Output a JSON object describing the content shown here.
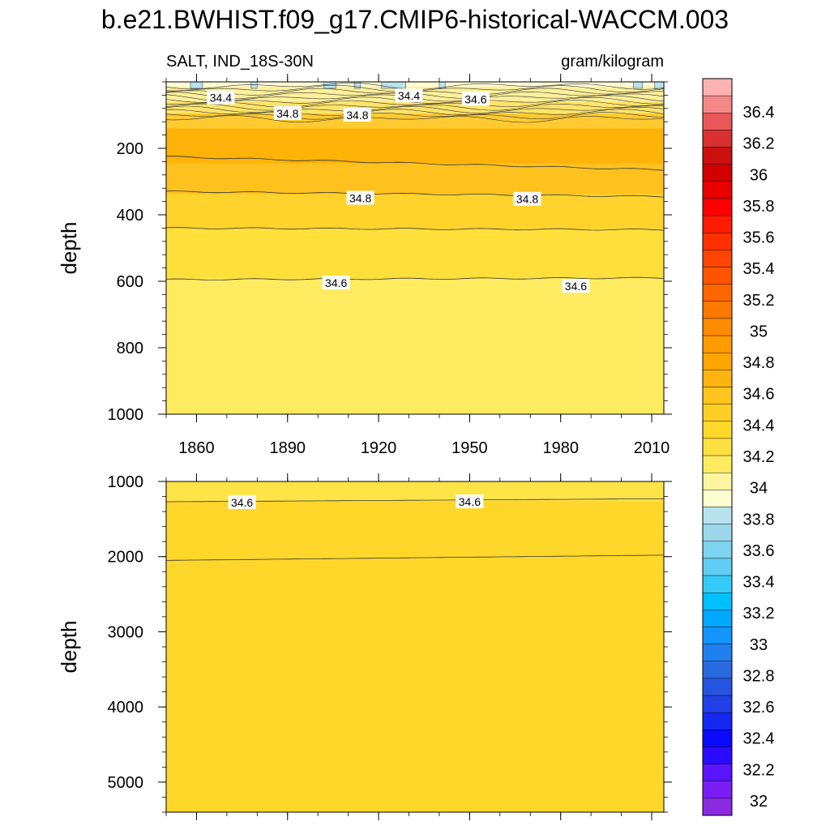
{
  "title": "b.e21.BWHIST.f09_g17.CMIP6-historical-WACCM.003",
  "colorbar": {
    "labels": [
      "32",
      "32.2",
      "32.4",
      "32.6",
      "32.8",
      "33",
      "33.2",
      "33.4",
      "33.6",
      "33.8",
      "34",
      "34.2",
      "34.4",
      "34.6",
      "34.8",
      "35",
      "35.2",
      "35.4",
      "35.6",
      "35.8",
      "36",
      "36.2",
      "36.4"
    ],
    "colors": [
      "#8a2be2",
      "#7a1ef5",
      "#5a14ff",
      "#2b0bff",
      "#0a0aff",
      "#1428f0",
      "#2040e8",
      "#2555e0",
      "#2a6ae0",
      "#2080f0",
      "#1494ff",
      "#00a8ff",
      "#00c0ff",
      "#35caf7",
      "#60cdf5",
      "#7ed3f0",
      "#9cd7ec",
      "#b8e2ee",
      "#fffed0",
      "#fff5a0",
      "#ffeb60",
      "#ffe040",
      "#ffd82a",
      "#ffcf25",
      "#ffc41e",
      "#ffb40f",
      "#ffa500",
      "#ff9a00",
      "#ff8c00",
      "#ff7800",
      "#ff6600",
      "#ff5500",
      "#ff4400",
      "#ff3000",
      "#ff1a00",
      "#ff0000",
      "#e80000",
      "#d20000",
      "#cc1010",
      "#d83030",
      "#e85858",
      "#f48888",
      "#ffb2b2"
    ]
  },
  "chart_data": [
    {
      "type": "contour",
      "subtitle_left": "SALT, IND_18S-30N",
      "subtitle_right": "gram/kilogram",
      "ylabel": "depth",
      "xlim": [
        1850,
        2014
      ],
      "ylim": [
        1000,
        0
      ],
      "xticks": [
        "1860",
        "1890",
        "1920",
        "1950",
        "1980",
        "2010"
      ],
      "yticks": [
        "200",
        "400",
        "600",
        "800",
        "1000"
      ],
      "contour_labels": [
        {
          "text": "34.4",
          "x": 1868,
          "y": 48
        },
        {
          "text": "34.8",
          "x": 1890,
          "y": 95
        },
        {
          "text": "34.8",
          "x": 1913,
          "y": 100
        },
        {
          "text": "34.4",
          "x": 1930,
          "y": 42
        },
        {
          "text": "34.6",
          "x": 1952,
          "y": 52
        },
        {
          "text": "34.8",
          "x": 1914,
          "y": 350
        },
        {
          "text": "34.8",
          "x": 1969,
          "y": 353
        },
        {
          "text": "34.6",
          "x": 1906,
          "y": 605
        },
        {
          "text": "34.6",
          "x": 1985,
          "y": 615
        }
      ],
      "contour_depths": [
        {
          "level": "34.8",
          "depth_start": 225,
          "depth_end": 265
        },
        {
          "level": "34.8",
          "depth_start": 330,
          "depth_end": 345
        },
        {
          "level": "34.6",
          "depth_start": 440,
          "depth_end": 445
        },
        {
          "level": "34.6",
          "depth_start": 595,
          "depth_end": 590
        }
      ]
    },
    {
      "type": "contour",
      "ylabel": "depth",
      "xlim": [
        1850,
        2014
      ],
      "ylim": [
        5400,
        1000
      ],
      "yticks": [
        "1000",
        "2000",
        "3000",
        "4000",
        "5000"
      ],
      "contour_labels": [
        {
          "text": "34.6",
          "x": 1875,
          "y": 1280
        },
        {
          "text": "34.6",
          "x": 1950,
          "y": 1270
        }
      ],
      "contour_depths": [
        {
          "level": "34.6",
          "depth_start": 1270,
          "depth_end": 1230
        },
        {
          "level": "34.6",
          "depth_start": 2050,
          "depth_end": 1980
        }
      ]
    }
  ]
}
